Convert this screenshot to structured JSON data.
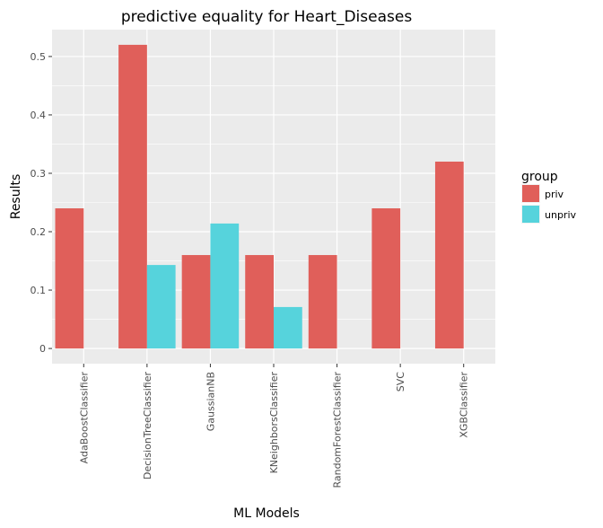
{
  "chart_data": {
    "type": "bar",
    "title": "predictive equality for Heart_Diseases",
    "xlabel": "ML Models",
    "ylabel": "Results",
    "categories": [
      "AdaBoostClassifier",
      "DecisionTreeClassifier",
      "GaussianNB",
      "KNeighborsClassifier",
      "RandomForestClassifier",
      "SVC",
      "XGBClassifier"
    ],
    "series": [
      {
        "name": "priv",
        "color": "#e05f5a",
        "values": [
          0.24,
          0.52,
          0.16,
          0.16,
          0.16,
          0.24,
          0.32
        ]
      },
      {
        "name": "unpriv",
        "color": "#56d3dc",
        "values": [
          0,
          0.143,
          0.214,
          0.071,
          0,
          0,
          0
        ]
      }
    ],
    "yticks": [
      0,
      0.1,
      0.2,
      0.3,
      0.4,
      0.5
    ],
    "ytick_labels": [
      "0",
      "0.1",
      "0.2",
      "0.3",
      "0.4",
      "0.5"
    ],
    "ylim": [
      -0.026,
      0.546
    ],
    "grid": true,
    "legend": {
      "title": "group",
      "placement": "right"
    }
  }
}
